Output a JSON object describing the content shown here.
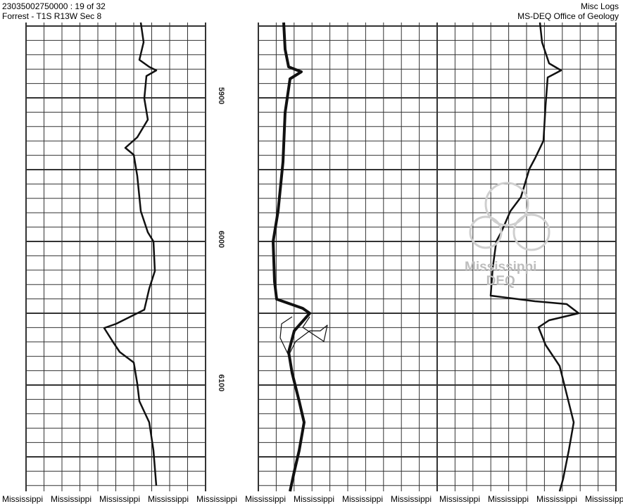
{
  "header": {
    "well_id": "23035002750000 : 19 of 32",
    "location": "Forrest - T1S R13W Sec 8",
    "doc_type": "Misc Logs",
    "agency": "MS-DEQ Office of Geology"
  },
  "depth_labels": [
    "5900",
    "6000",
    "6100"
  ],
  "watermark": {
    "line1": "Mississippi",
    "line2": "DEQ"
  },
  "footer_text": "Mississippi",
  "colors": {
    "ink": "#111111",
    "grid": "#333333",
    "watermark": "#bdbdbd"
  }
}
